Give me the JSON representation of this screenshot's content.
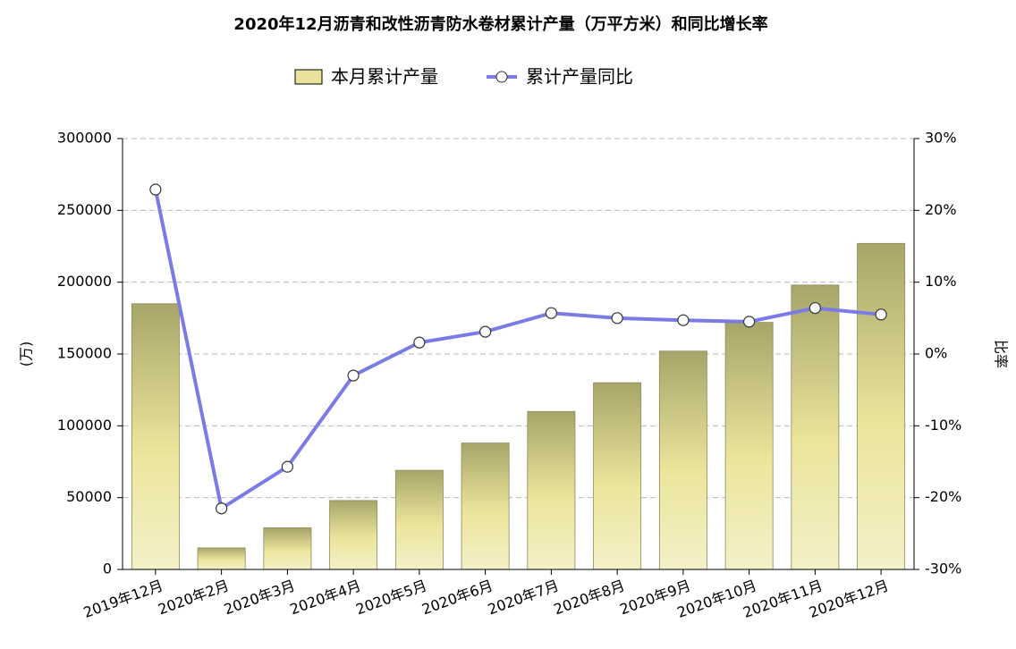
{
  "chart_data": {
    "type": "bar-line",
    "title": "2020年12月沥青和改性沥青防水卷材累计产量（万平方米）和同比增长率",
    "y_label": "(万)",
    "y2_label": "比率",
    "categories": [
      "2019年12月",
      "2020年2月",
      "2020年3月",
      "2020年4月",
      "2020年5月",
      "2020年6月",
      "2020年7月",
      "2020年8月",
      "2020年9月",
      "2020年10月",
      "2020年11月",
      "2020年12月"
    ],
    "series": [
      {
        "name": "本月累计产量",
        "type": "bar",
        "color": "#e8e29a",
        "values": [
          185000,
          15000,
          29000,
          48000,
          69000,
          88000,
          110000,
          130000,
          152000,
          172000,
          198000,
          227000
        ]
      },
      {
        "name": "累计产量同比",
        "type": "line",
        "axis": "y2",
        "color": "#7b7be8",
        "values": [
          22.9,
          -21.5,
          -15.7,
          -3.0,
          1.6,
          3.1,
          5.7,
          5.0,
          4.7,
          4.5,
          6.4,
          5.5
        ]
      }
    ],
    "ylim": [
      0,
      300000
    ],
    "yticks": [
      0,
      50000,
      100000,
      150000,
      200000,
      250000,
      300000
    ],
    "y2lim": [
      -30,
      30
    ],
    "y2ticks": [
      {
        "value": -30,
        "label": "-30%"
      },
      {
        "value": -20,
        "label": "-20%"
      },
      {
        "value": -10,
        "label": "-10%"
      },
      {
        "value": 0,
        "label": "0%"
      },
      {
        "value": 10,
        "label": "10%"
      },
      {
        "value": 20,
        "label": "20%"
      },
      {
        "value": 30,
        "label": "30%"
      }
    ],
    "grid": true,
    "legend": "top"
  }
}
